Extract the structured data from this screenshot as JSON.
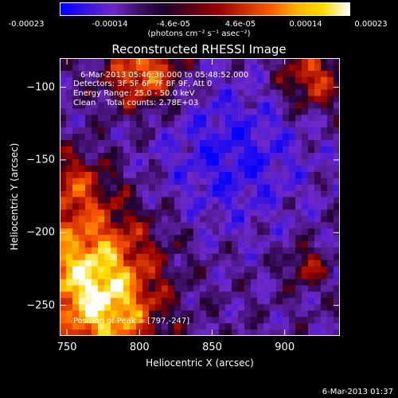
{
  "colorbar": {
    "ticks": [
      "-0.00023",
      "-0.00014",
      "-4.6e-05",
      "4.6e-05",
      "0.00014",
      "0.00023"
    ],
    "label": "(photons cm⁻² s⁻¹ asec⁻²)"
  },
  "chart_data": {
    "type": "heatmap",
    "title": "Reconstructed RHESSI Image",
    "xlabel": "Heliocentric X (arcsec)",
    "ylabel": "Heliocentric Y (arcsec)",
    "xlim": [
      745,
      938
    ],
    "ylim": [
      -271,
      -80
    ],
    "x_ticks": [
      750,
      800,
      850,
      900
    ],
    "y_ticks": [
      -100,
      -150,
      -200,
      -250
    ],
    "colorscale": {
      "min": -0.00023,
      "max": 0.00023
    },
    "annotations": {
      "time": "6-Mar-2013 05:46:36.000 to 05:48:52.000",
      "detectors": "Detectors: 3F 5F 6F 7F 8F 9F, Att 0",
      "energy": "Energy Range: 25.0 - 50.0 keV",
      "method": "Clean    Total counts: 2.78E+03",
      "peak": "Position of Peak = [797,-247]"
    }
  },
  "footer": {
    "timestamp": "6-Mar-2013 01:37"
  }
}
